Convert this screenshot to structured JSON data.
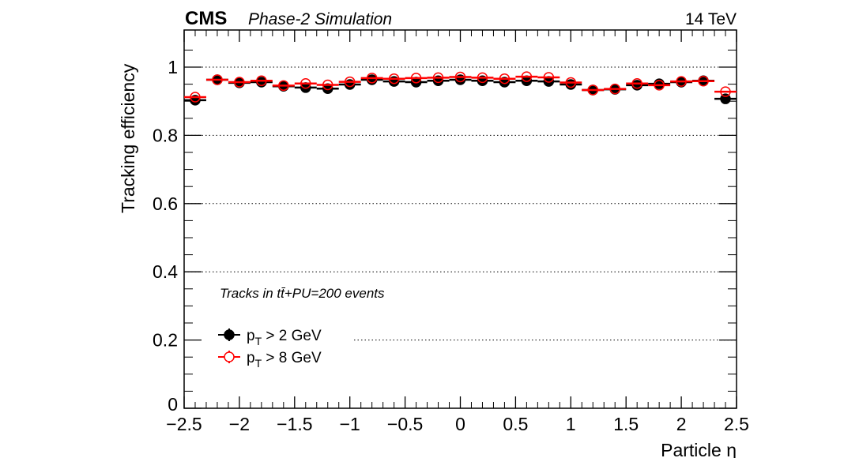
{
  "chart_data": {
    "type": "scatter",
    "experiment": "CMS",
    "subtitle": "Phase-2 Simulation",
    "energy": "14 TeV",
    "xlabel": "Particle η",
    "ylabel": "Tracking efficiency",
    "xlim": [
      -2.5,
      2.5
    ],
    "ylim": [
      0,
      1.1
    ],
    "xticks": [
      -2.5,
      -2,
      -1.5,
      -1,
      -0.5,
      0,
      0.5,
      1,
      1.5,
      2,
      2.5
    ],
    "xtick_labels": [
      "−2.5",
      "−2",
      "−1.5",
      "−1",
      "−0.5",
      "0",
      "0.5",
      "1",
      "1.5",
      "2",
      "2.5"
    ],
    "yticks": [
      0,
      0.2,
      0.4,
      0.6,
      0.8,
      1
    ],
    "ytick_labels": [
      "0",
      "0.2",
      "0.4",
      "0.6",
      "0.8",
      "1"
    ],
    "grid": "horizontal dotted",
    "annotation": "Tracks in tt̄+PU=200 events",
    "legend_placement": "bottom-left",
    "bin_width": 0.2,
    "x": [
      -2.4,
      -2.2,
      -2.0,
      -1.8,
      -1.6,
      -1.4,
      -1.2,
      -1.0,
      -0.8,
      -0.6,
      -0.4,
      -0.2,
      0,
      0.2,
      0.4,
      0.6,
      0.8,
      1.0,
      1.2,
      1.4,
      1.6,
      1.8,
      2.0,
      2.2,
      2.4
    ],
    "series": [
      {
        "name": "p_T > 2 GeV",
        "label_main": "p",
        "label_sub": "T",
        "label_rest": " > 2 GeV",
        "color": "#000000",
        "marker": "filled-circle",
        "values": [
          0.903,
          0.963,
          0.954,
          0.956,
          0.944,
          0.94,
          0.937,
          0.949,
          0.963,
          0.958,
          0.956,
          0.96,
          0.963,
          0.96,
          0.956,
          0.96,
          0.958,
          0.949,
          0.933,
          0.935,
          0.947,
          0.951,
          0.956,
          0.96,
          0.907
        ]
      },
      {
        "name": "p_T > 8 GeV",
        "label_main": "p",
        "label_sub": "T",
        "label_rest": " > 8 GeV",
        "color": "#ff0000",
        "marker": "open-circle",
        "values": [
          0.912,
          0.963,
          0.956,
          0.96,
          0.946,
          0.952,
          0.948,
          0.957,
          0.968,
          0.966,
          0.968,
          0.969,
          0.971,
          0.969,
          0.966,
          0.972,
          0.97,
          0.955,
          0.933,
          0.936,
          0.952,
          0.947,
          0.958,
          0.959,
          0.928
        ]
      }
    ]
  }
}
